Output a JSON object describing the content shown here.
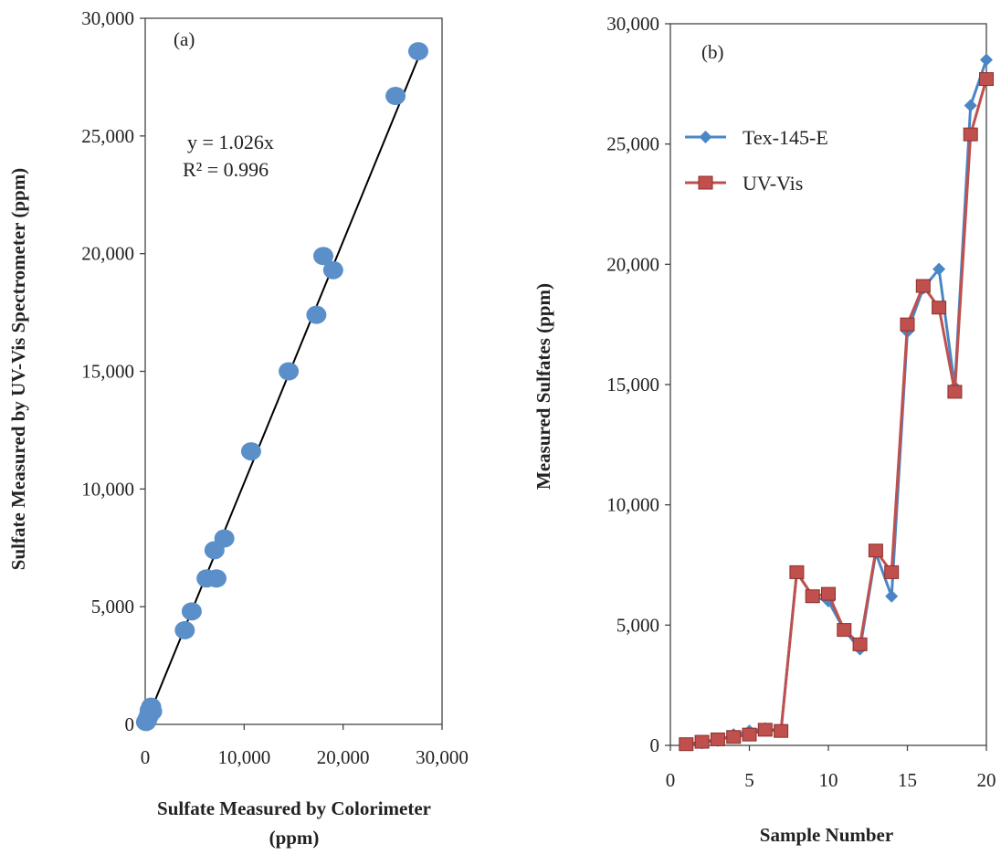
{
  "chart_data": [
    {
      "type": "scatter",
      "panel_label": "(a)",
      "xlabel_lines": [
        "Sulfate Measured by Colorimeter",
        "(ppm)"
      ],
      "ylabel": "Sulfate Measured by UV-Vis Spectrometer  (ppm)",
      "xlim": [
        0,
        30000
      ],
      "ylim": [
        0,
        30000
      ],
      "xticks": [
        0,
        10000,
        20000,
        30000
      ],
      "xtick_labels": [
        "0",
        "10,000",
        "20,000",
        "30,000"
      ],
      "yticks": [
        0,
        5000,
        10000,
        15000,
        20000,
        25000,
        30000
      ],
      "ytick_labels": [
        "0",
        "5,000",
        "10,000",
        "15,000",
        "20,000",
        "25,000",
        "30,000"
      ],
      "grid": false,
      "trendline": {
        "slope": 1.026,
        "equation": "y = 1.026x",
        "r2_label": "R² = 0.996"
      },
      "marker_color": "#5b8fc9",
      "line_color": "#000000",
      "points": [
        {
          "x": 80,
          "y": 100
        },
        {
          "x": 200,
          "y": 200
        },
        {
          "x": 350,
          "y": 350
        },
        {
          "x": 450,
          "y": 600
        },
        {
          "x": 600,
          "y": 750
        },
        {
          "x": 700,
          "y": 550
        },
        {
          "x": 4000,
          "y": 4000
        },
        {
          "x": 4700,
          "y": 4800
        },
        {
          "x": 6200,
          "y": 6200
        },
        {
          "x": 7200,
          "y": 6200
        },
        {
          "x": 7000,
          "y": 7400
        },
        {
          "x": 8000,
          "y": 7900
        },
        {
          "x": 10700,
          "y": 11600
        },
        {
          "x": 14500,
          "y": 15000
        },
        {
          "x": 17300,
          "y": 17400
        },
        {
          "x": 18000,
          "y": 19900
        },
        {
          "x": 19000,
          "y": 19300
        },
        {
          "x": 25300,
          "y": 26700
        },
        {
          "x": 27600,
          "y": 28600
        }
      ]
    },
    {
      "type": "line",
      "panel_label": "(b)",
      "xlabel": "Sample Number",
      "ylabel": "Measured Sulfates  (ppm)",
      "xlim": [
        0,
        20
      ],
      "ylim": [
        0,
        30000
      ],
      "xticks": [
        0,
        5,
        10,
        15,
        20
      ],
      "xtick_labels": [
        "0",
        "5",
        "10",
        "15",
        "20"
      ],
      "yticks": [
        0,
        5000,
        10000,
        15000,
        20000,
        25000,
        30000
      ],
      "ytick_labels": [
        "0",
        "5,000",
        "10,000",
        "15,000",
        "20,000",
        "25,000",
        "30,000"
      ],
      "grid": false,
      "legend_position": "top-left",
      "x": [
        1,
        2,
        3,
        4,
        5,
        6,
        7,
        8,
        9,
        10,
        11,
        12,
        13,
        14,
        15,
        16,
        17,
        18,
        19,
        20
      ],
      "series": [
        {
          "name": "Tex-145-E",
          "color": "#4a86c5",
          "marker": "diamond",
          "values": [
            50,
            100,
            200,
            450,
            600,
            700,
            600,
            7200,
            6200,
            6000,
            4800,
            4000,
            8000,
            6200,
            17200,
            19000,
            19800,
            14900,
            26600,
            28500
          ]
        },
        {
          "name": "UV-Vis",
          "color": "#c0504d",
          "marker": "square",
          "values": [
            50,
            150,
            250,
            350,
            450,
            650,
            600,
            7200,
            6200,
            6300,
            4800,
            4200,
            8100,
            7200,
            17500,
            19100,
            18200,
            14700,
            25400,
            27700
          ]
        }
      ]
    }
  ]
}
